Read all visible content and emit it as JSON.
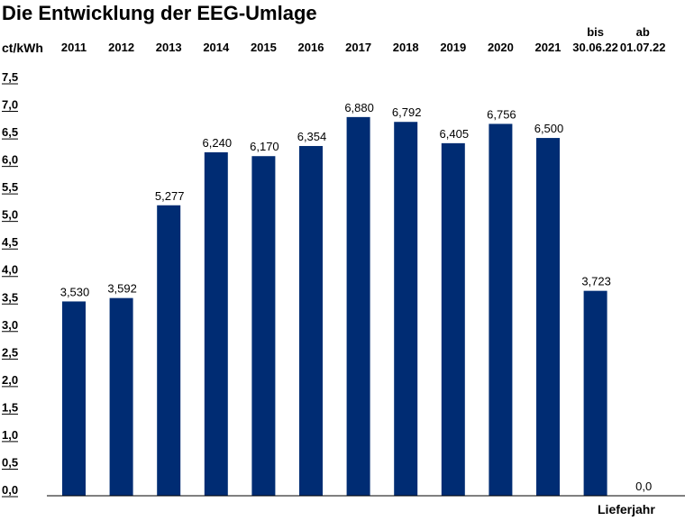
{
  "chart_data": {
    "type": "bar",
    "title": "Die Entwicklung der EEG-Umlage",
    "ylabel": "ct/kWh",
    "xlabel": "Lieferjahr",
    "categories": [
      [
        "2011"
      ],
      [
        "2012"
      ],
      [
        "2013"
      ],
      [
        "2014"
      ],
      [
        "2015"
      ],
      [
        "2016"
      ],
      [
        "2017"
      ],
      [
        "2018"
      ],
      [
        "2019"
      ],
      [
        "2020"
      ],
      [
        "2021"
      ],
      [
        "bis",
        "30.06.22"
      ],
      [
        "ab",
        "01.07.22"
      ]
    ],
    "values": [
      3.53,
      3.592,
      5.277,
      6.24,
      6.17,
      6.354,
      6.88,
      6.792,
      6.405,
      6.756,
      6.5,
      3.723,
      0.0
    ],
    "data_labels": [
      "3,530",
      "3,592",
      "5,277",
      "6,240",
      "6,170",
      "6,354",
      "6,880",
      "6,792",
      "6,405",
      "6,756",
      "6,500",
      "3,723",
      "0,0"
    ],
    "yticks": [
      "0,0",
      "0,5",
      "1,0",
      "1,5",
      "2,0",
      "2,5",
      "3,0",
      "3,5",
      "4,0",
      "4,5",
      "5,0",
      "5,5",
      "6,0",
      "6,5",
      "7,0",
      "7,5"
    ],
    "ylim": [
      0,
      7.5
    ],
    "grid": false,
    "legend": "none",
    "bar_color": "#002c73"
  }
}
